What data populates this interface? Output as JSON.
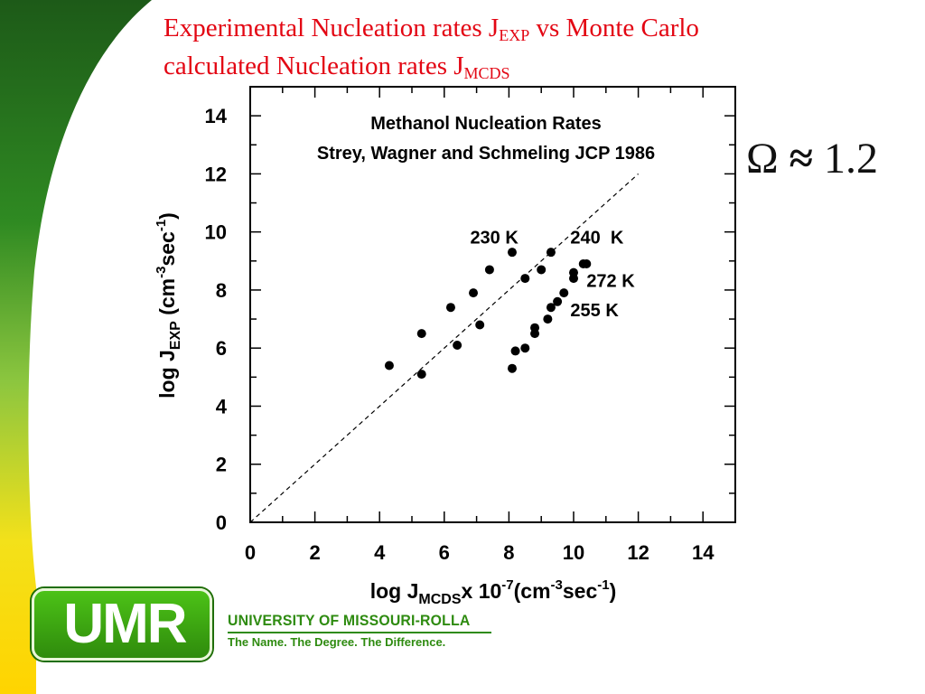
{
  "slide": {
    "title_line1_pre": "Experimental Nucleation rates J",
    "title_line1_sub": "EXP",
    "title_line1_post": " vs Monte Carlo",
    "title_line2_pre": "calculated Nucleation rates J",
    "title_line2_sub": "MCDS",
    "omega_symbol": "Ω",
    "approx_symbol": "≈",
    "omega_value": "1.2"
  },
  "chart_data": {
    "type": "scatter",
    "title_line1": "Methanol Nucleation Rates",
    "title_line2": "Strey, Wagner and Schmeling JCP 1986",
    "xlabel": {
      "main": "log J",
      "sub": "MCDS",
      "mid": "x 10",
      "exp1": "-7",
      "mid2": "(cm",
      "exp2": "-3",
      "mid3": "sec",
      "exp3": "-1",
      "end": ")"
    },
    "ylabel": {
      "main": "log J",
      "sub": "EXP",
      "mid": " (cm",
      "exp1": "-3",
      "mid2": "sec",
      "exp2": "-1",
      "end": ")"
    },
    "xlim": [
      0,
      15
    ],
    "ylim": [
      0,
      15
    ],
    "x_ticks": [
      0,
      2,
      4,
      6,
      8,
      10,
      12,
      14
    ],
    "y_ticks": [
      0,
      2,
      4,
      6,
      8,
      10,
      12,
      14
    ],
    "grid": false,
    "reference_line": {
      "style": "dashed",
      "x": [
        0,
        12
      ],
      "y": [
        0,
        12
      ]
    },
    "annotations": [
      {
        "text": "230 K",
        "x": 6.8,
        "y": 9.6
      },
      {
        "text": "240  K",
        "x": 9.9,
        "y": 9.6
      },
      {
        "text": "272 K",
        "x": 10.4,
        "y": 8.1
      },
      {
        "text": "255 K",
        "x": 9.9,
        "y": 7.1
      }
    ],
    "points": [
      {
        "x": 4.3,
        "y": 5.4
      },
      {
        "x": 5.3,
        "y": 6.5
      },
      {
        "x": 5.3,
        "y": 5.1
      },
      {
        "x": 6.2,
        "y": 7.4
      },
      {
        "x": 6.4,
        "y": 6.1
      },
      {
        "x": 6.9,
        "y": 7.9
      },
      {
        "x": 7.1,
        "y": 6.8
      },
      {
        "x": 7.4,
        "y": 8.7
      },
      {
        "x": 8.1,
        "y": 9.3
      },
      {
        "x": 8.5,
        "y": 8.4
      },
      {
        "x": 9.0,
        "y": 8.7
      },
      {
        "x": 9.3,
        "y": 9.3
      },
      {
        "x": 10.0,
        "y": 8.6
      },
      {
        "x": 10.0,
        "y": 8.4
      },
      {
        "x": 10.3,
        "y": 8.9
      },
      {
        "x": 10.4,
        "y": 8.9
      },
      {
        "x": 9.7,
        "y": 7.9
      },
      {
        "x": 9.5,
        "y": 7.6
      },
      {
        "x": 9.3,
        "y": 7.4
      },
      {
        "x": 9.2,
        "y": 7.0
      },
      {
        "x": 8.8,
        "y": 6.7
      },
      {
        "x": 8.8,
        "y": 6.5
      },
      {
        "x": 8.5,
        "y": 6.0
      },
      {
        "x": 8.2,
        "y": 5.9
      },
      {
        "x": 8.1,
        "y": 5.3
      }
    ]
  },
  "logo": {
    "text": "UMR",
    "university": "UNIVERSITY OF MISSOURI-ROLLA",
    "tagline": "The Name. The Degree. The Difference.",
    "color_green": "#2e8b10"
  },
  "colors": {
    "title_red": "#e30613",
    "accent_green": "#3a9a1a",
    "accent_yellow": "#f5d400"
  }
}
